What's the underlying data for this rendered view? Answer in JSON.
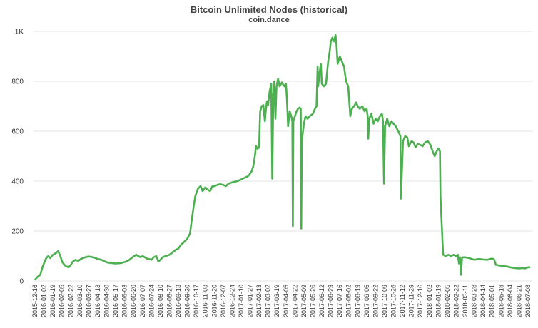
{
  "chart_data": {
    "type": "line",
    "title": "Bitcoin Unlimited Nodes (historical)",
    "subtitle": "coin.dance",
    "xlabel": "",
    "ylabel": "",
    "ylim": [
      0,
      1000
    ],
    "y_ticks": [
      0,
      200,
      400,
      600,
      800,
      1000
    ],
    "y_tick_labels": [
      "0",
      "200",
      "400",
      "600",
      "800",
      "1K"
    ],
    "grid": true,
    "line_color": "#4caf50",
    "x_tick_labels": [
      "2015-12-16",
      "2016-01-02",
      "2016-01-19",
      "2016-02-05",
      "2016-02-22",
      "2016-03-10",
      "2016-03-27",
      "2016-04-13",
      "2016-04-30",
      "2016-05-17",
      "2016-06-03",
      "2016-06-20",
      "2016-07-07",
      "2016-07-24",
      "2016-08-10",
      "2016-08-27",
      "2016-09-13",
      "2016-09-30",
      "2016-10-17",
      "2016-11-03",
      "2016-11-20",
      "2016-12-07",
      "2016-12-24",
      "2017-01-10",
      "2017-01-27",
      "2017-02-13",
      "2017-03-02",
      "2017-03-19",
      "2017-04-05",
      "2017-04-22",
      "2017-05-09",
      "2017-05-26",
      "2017-06-12",
      "2017-06-29",
      "2017-07-16",
      "2017-08-02",
      "2017-08-19",
      "2017-09-05",
      "2017-09-22",
      "2017-10-09",
      "2017-10-26",
      "2017-11-12",
      "2017-11-29",
      "2017-12-16",
      "2018-01-02",
      "2018-01-19",
      "2018-02-05",
      "2018-02-22",
      "2018-03-11",
      "2018-03-28",
      "2018-04-14",
      "2018-05-01",
      "2018-05-18",
      "2018-06-04",
      "2018-06-21",
      "2018-07-08"
    ],
    "series": [
      {
        "points": [
          [
            "2015-12-16",
            5
          ],
          [
            "2015-12-20",
            15
          ],
          [
            "2015-12-26",
            25
          ],
          [
            "2015-12-31",
            60
          ],
          [
            "2016-01-06",
            90
          ],
          [
            "2016-01-10",
            100
          ],
          [
            "2016-01-14",
            92
          ],
          [
            "2016-01-19",
            105
          ],
          [
            "2016-01-25",
            112
          ],
          [
            "2016-01-29",
            120
          ],
          [
            "2016-02-02",
            100
          ],
          [
            "2016-02-06",
            75
          ],
          [
            "2016-02-12",
            60
          ],
          [
            "2016-02-18",
            55
          ],
          [
            "2016-02-22",
            65
          ],
          [
            "2016-02-26",
            78
          ],
          [
            "2016-03-02",
            85
          ],
          [
            "2016-03-07",
            80
          ],
          [
            "2016-03-12",
            88
          ],
          [
            "2016-03-20",
            95
          ],
          [
            "2016-03-27",
            98
          ],
          [
            "2016-04-05",
            95
          ],
          [
            "2016-04-13",
            88
          ],
          [
            "2016-04-20",
            85
          ],
          [
            "2016-04-30",
            75
          ],
          [
            "2016-05-08",
            72
          ],
          [
            "2016-05-17",
            70
          ],
          [
            "2016-05-28",
            72
          ],
          [
            "2016-06-06",
            78
          ],
          [
            "2016-06-12",
            85
          ],
          [
            "2016-06-20",
            98
          ],
          [
            "2016-06-25",
            105
          ],
          [
            "2016-07-03",
            95
          ],
          [
            "2016-07-07",
            100
          ],
          [
            "2016-07-15",
            90
          ],
          [
            "2016-07-24",
            85
          ],
          [
            "2016-07-28",
            95
          ],
          [
            "2016-08-02",
            100
          ],
          [
            "2016-08-06",
            78
          ],
          [
            "2016-08-10",
            85
          ],
          [
            "2016-08-14",
            95
          ],
          [
            "2016-08-20",
            100
          ],
          [
            "2016-08-27",
            105
          ],
          [
            "2016-09-02",
            115
          ],
          [
            "2016-09-08",
            125
          ],
          [
            "2016-09-13",
            130
          ],
          [
            "2016-09-18",
            145
          ],
          [
            "2016-09-23",
            155
          ],
          [
            "2016-09-30",
            170
          ],
          [
            "2016-10-05",
            190
          ],
          [
            "2016-10-08",
            240
          ],
          [
            "2016-10-12",
            300
          ],
          [
            "2016-10-15",
            340
          ],
          [
            "2016-10-20",
            370
          ],
          [
            "2016-10-25",
            380
          ],
          [
            "2016-10-29",
            360
          ],
          [
            "2016-11-03",
            375
          ],
          [
            "2016-11-08",
            365
          ],
          [
            "2016-11-12",
            360
          ],
          [
            "2016-11-16",
            378
          ],
          [
            "2016-11-20",
            380
          ],
          [
            "2016-11-26",
            385
          ],
          [
            "2016-12-01",
            388
          ],
          [
            "2016-12-07",
            385
          ],
          [
            "2016-12-12",
            380
          ],
          [
            "2016-12-17",
            390
          ],
          [
            "2016-12-24",
            395
          ],
          [
            "2016-12-29",
            398
          ],
          [
            "2017-01-03",
            400
          ],
          [
            "2017-01-08",
            405
          ],
          [
            "2017-01-13",
            410
          ],
          [
            "2017-01-18",
            415
          ],
          [
            "2017-01-23",
            420
          ],
          [
            "2017-01-27",
            430
          ],
          [
            "2017-01-30",
            440
          ],
          [
            "2017-02-02",
            460
          ],
          [
            "2017-02-05",
            500
          ],
          [
            "2017-02-07",
            540
          ],
          [
            "2017-02-10",
            530
          ],
          [
            "2017-02-13",
            535
          ],
          [
            "2017-02-15",
            680
          ],
          [
            "2017-02-18",
            700
          ],
          [
            "2017-02-21",
            705
          ],
          [
            "2017-02-24",
            640
          ],
          [
            "2017-02-26",
            690
          ],
          [
            "2017-02-28",
            720
          ],
          [
            "2017-03-02",
            705
          ],
          [
            "2017-03-05",
            760
          ],
          [
            "2017-03-08",
            790
          ],
          [
            "2017-03-10",
            410
          ],
          [
            "2017-03-12",
            750
          ],
          [
            "2017-03-14",
            800
          ],
          [
            "2017-03-16",
            650
          ],
          [
            "2017-03-18",
            780
          ],
          [
            "2017-03-19",
            790
          ],
          [
            "2017-03-21",
            810
          ],
          [
            "2017-03-24",
            780
          ],
          [
            "2017-03-28",
            795
          ],
          [
            "2017-04-02",
            780
          ],
          [
            "2017-04-05",
            790
          ],
          [
            "2017-04-07",
            720
          ],
          [
            "2017-04-09",
            620
          ],
          [
            "2017-04-12",
            680
          ],
          [
            "2017-04-15",
            660
          ],
          [
            "2017-04-17",
            640
          ],
          [
            "2017-04-18",
            220
          ],
          [
            "2017-04-19",
            640
          ],
          [
            "2017-04-22",
            660
          ],
          [
            "2017-04-25",
            680
          ],
          [
            "2017-04-28",
            690
          ],
          [
            "2017-05-01",
            695
          ],
          [
            "2017-05-03",
            690
          ],
          [
            "2017-05-04",
            210
          ],
          [
            "2017-05-05",
            560
          ],
          [
            "2017-05-09",
            630
          ],
          [
            "2017-05-12",
            660
          ],
          [
            "2017-05-16",
            650
          ],
          [
            "2017-05-20",
            660
          ],
          [
            "2017-05-26",
            670
          ],
          [
            "2017-05-30",
            690
          ],
          [
            "2017-06-02",
            700
          ],
          [
            "2017-06-04",
            860
          ],
          [
            "2017-06-05",
            780
          ],
          [
            "2017-06-07",
            820
          ],
          [
            "2017-06-10",
            870
          ],
          [
            "2017-06-12",
            790
          ],
          [
            "2017-06-16",
            780
          ],
          [
            "2017-06-20",
            790
          ],
          [
            "2017-06-24",
            880
          ],
          [
            "2017-06-27",
            920
          ],
          [
            "2017-06-29",
            960
          ],
          [
            "2017-07-02",
            975
          ],
          [
            "2017-07-05",
            960
          ],
          [
            "2017-07-08",
            985
          ],
          [
            "2017-07-10",
            940
          ],
          [
            "2017-07-12",
            870
          ],
          [
            "2017-07-16",
            900
          ],
          [
            "2017-07-20",
            880
          ],
          [
            "2017-07-24",
            860
          ],
          [
            "2017-07-28",
            800
          ],
          [
            "2017-08-01",
            780
          ],
          [
            "2017-08-03",
            720
          ],
          [
            "2017-08-05",
            660
          ],
          [
            "2017-08-08",
            690
          ],
          [
            "2017-08-12",
            700
          ],
          [
            "2017-08-16",
            715
          ],
          [
            "2017-08-19",
            700
          ],
          [
            "2017-08-23",
            690
          ],
          [
            "2017-08-28",
            700
          ],
          [
            "2017-09-01",
            680
          ],
          [
            "2017-09-05",
            690
          ],
          [
            "2017-09-07",
            660
          ],
          [
            "2017-09-08",
            570
          ],
          [
            "2017-09-10",
            650
          ],
          [
            "2017-09-14",
            670
          ],
          [
            "2017-09-18",
            630
          ],
          [
            "2017-09-22",
            650
          ],
          [
            "2017-09-26",
            640
          ],
          [
            "2017-09-30",
            660
          ],
          [
            "2017-10-04",
            670
          ],
          [
            "2017-10-06",
            640
          ],
          [
            "2017-10-08",
            390
          ],
          [
            "2017-10-10",
            620
          ],
          [
            "2017-10-14",
            650
          ],
          [
            "2017-10-18",
            620
          ],
          [
            "2017-10-22",
            640
          ],
          [
            "2017-10-26",
            630
          ],
          [
            "2017-10-30",
            620
          ],
          [
            "2017-11-04",
            600
          ],
          [
            "2017-11-08",
            580
          ],
          [
            "2017-11-09",
            330
          ],
          [
            "2017-11-11",
            450
          ],
          [
            "2017-11-13",
            560
          ],
          [
            "2017-11-17",
            580
          ],
          [
            "2017-11-21",
            575
          ],
          [
            "2017-11-24",
            540
          ],
          [
            "2017-11-29",
            560
          ],
          [
            "2017-12-03",
            555
          ],
          [
            "2017-12-07",
            535
          ],
          [
            "2017-12-11",
            550
          ],
          [
            "2017-12-16",
            545
          ],
          [
            "2017-12-20",
            540
          ],
          [
            "2017-12-25",
            555
          ],
          [
            "2017-12-30",
            560
          ],
          [
            "2018-01-04",
            545
          ],
          [
            "2018-01-08",
            520
          ],
          [
            "2018-01-12",
            500
          ],
          [
            "2018-01-16",
            520
          ],
          [
            "2018-01-19",
            530
          ],
          [
            "2018-01-22",
            520
          ],
          [
            "2018-01-23",
            340
          ],
          [
            "2018-01-26",
            200
          ],
          [
            "2018-01-28",
            105
          ],
          [
            "2018-02-02",
            100
          ],
          [
            "2018-02-07",
            105
          ],
          [
            "2018-02-12",
            100
          ],
          [
            "2018-02-17",
            105
          ],
          [
            "2018-02-21",
            100
          ],
          [
            "2018-02-25",
            105
          ],
          [
            "2018-02-27",
            70
          ],
          [
            "2018-03-01",
            95
          ],
          [
            "2018-03-03",
            25
          ],
          [
            "2018-03-05",
            95
          ],
          [
            "2018-03-11",
            95
          ],
          [
            "2018-03-18",
            92
          ],
          [
            "2018-03-28",
            85
          ],
          [
            "2018-04-06",
            88
          ],
          [
            "2018-04-14",
            86
          ],
          [
            "2018-04-22",
            85
          ],
          [
            "2018-05-01",
            90
          ],
          [
            "2018-05-05",
            85
          ],
          [
            "2018-05-08",
            65
          ],
          [
            "2018-05-15",
            62
          ],
          [
            "2018-05-22",
            60
          ],
          [
            "2018-05-29",
            58
          ],
          [
            "2018-06-04",
            55
          ],
          [
            "2018-06-12",
            52
          ],
          [
            "2018-06-21",
            50
          ],
          [
            "2018-06-28",
            52
          ],
          [
            "2018-07-02",
            50
          ],
          [
            "2018-07-08",
            55
          ],
          [
            "2018-07-12",
            55
          ]
        ]
      }
    ]
  }
}
